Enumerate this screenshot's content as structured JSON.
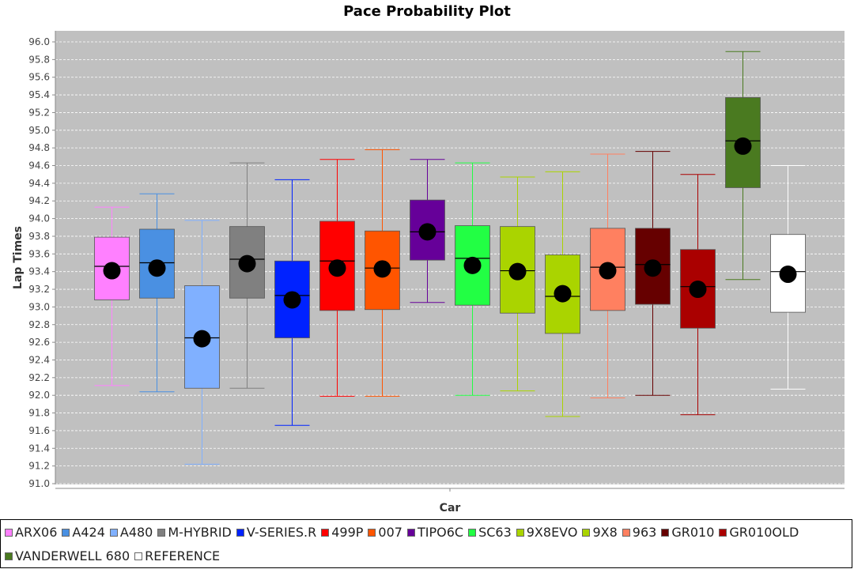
{
  "chart_data": {
    "type": "box",
    "title": "Pace Probability Plot",
    "xlabel": "Car",
    "ylabel": "Lap Times",
    "ylim": [
      91.0,
      96.0
    ],
    "yticks": [
      "91.0",
      "91.2",
      "91.4",
      "91.6",
      "91.8",
      "92.0",
      "92.2",
      "92.4",
      "92.6",
      "92.8",
      "93.0",
      "93.2",
      "93.4",
      "93.6",
      "93.8",
      "94.0",
      "94.2",
      "94.4",
      "94.6",
      "94.8",
      "95.0",
      "95.2",
      "95.4",
      "95.6",
      "95.8",
      "96.0"
    ],
    "grid": true,
    "legend_position": "bottom",
    "series": [
      {
        "name": "ARX06",
        "color": "#ff80ff",
        "min": 92.11,
        "q1": 93.08,
        "median": 93.46,
        "q3": 93.79,
        "max": 94.13,
        "mean": 93.41
      },
      {
        "name": "A424",
        "color": "#4a90e2",
        "min": 92.04,
        "q1": 93.1,
        "median": 93.5,
        "q3": 93.88,
        "max": 94.28,
        "mean": 93.44
      },
      {
        "name": "A480",
        "color": "#80b0ff",
        "min": 91.22,
        "q1": 92.08,
        "median": 92.65,
        "q3": 93.24,
        "max": 93.98,
        "mean": 92.64
      },
      {
        "name": "M-HYBRID",
        "color": "#808080",
        "min": 92.08,
        "q1": 93.1,
        "median": 93.54,
        "q3": 93.91,
        "max": 94.63,
        "mean": 93.49
      },
      {
        "name": "V-SERIES.R",
        "color": "#0022ff",
        "min": 91.66,
        "q1": 92.65,
        "median": 93.13,
        "q3": 93.52,
        "max": 94.44,
        "mean": 93.08
      },
      {
        "name": "499P",
        "color": "#ff0000",
        "min": 91.99,
        "q1": 92.96,
        "median": 93.52,
        "q3": 93.97,
        "max": 94.67,
        "mean": 93.44
      },
      {
        "name": "007",
        "color": "#ff5500",
        "min": 91.99,
        "q1": 92.97,
        "median": 93.44,
        "q3": 93.86,
        "max": 94.78,
        "mean": 93.43
      },
      {
        "name": "TIPO6C",
        "color": "#660099",
        "min": 93.05,
        "q1": 93.53,
        "median": 93.85,
        "q3": 94.21,
        "max": 94.67,
        "mean": 93.85
      },
      {
        "name": "SC63",
        "color": "#22ff44",
        "min": 92.0,
        "q1": 93.02,
        "median": 93.55,
        "q3": 93.92,
        "max": 94.63,
        "mean": 93.47
      },
      {
        "name": "9X8EVO",
        "color": "#aad400",
        "min": 92.05,
        "q1": 92.93,
        "median": 93.41,
        "q3": 93.91,
        "max": 94.47,
        "mean": 93.4
      },
      {
        "name": "9X8",
        "color": "#aad400",
        "min": 91.76,
        "q1": 92.7,
        "median": 93.12,
        "q3": 93.59,
        "max": 94.53,
        "mean": 93.15
      },
      {
        "name": "963",
        "color": "#ff8060",
        "min": 91.97,
        "q1": 92.96,
        "median": 93.45,
        "q3": 93.89,
        "max": 94.73,
        "mean": 93.41
      },
      {
        "name": "GR010",
        "color": "#660000",
        "min": 92.0,
        "q1": 93.03,
        "median": 93.48,
        "q3": 93.89,
        "max": 94.76,
        "mean": 93.44
      },
      {
        "name": "GR010OLD",
        "color": "#aa0000",
        "min": 91.78,
        "q1": 92.76,
        "median": 93.23,
        "q3": 93.65,
        "max": 94.5,
        "mean": 93.2
      },
      {
        "name": "VANDERWELL 680",
        "color": "#4a7a20",
        "min": 93.31,
        "q1": 94.35,
        "median": 94.88,
        "q3": 95.37,
        "max": 95.89,
        "mean": 94.82
      },
      {
        "name": "REFERENCE",
        "color": "#ffffff",
        "min": 92.07,
        "q1": 92.94,
        "median": 93.4,
        "q3": 93.82,
        "max": 94.6,
        "mean": 93.37
      }
    ]
  }
}
